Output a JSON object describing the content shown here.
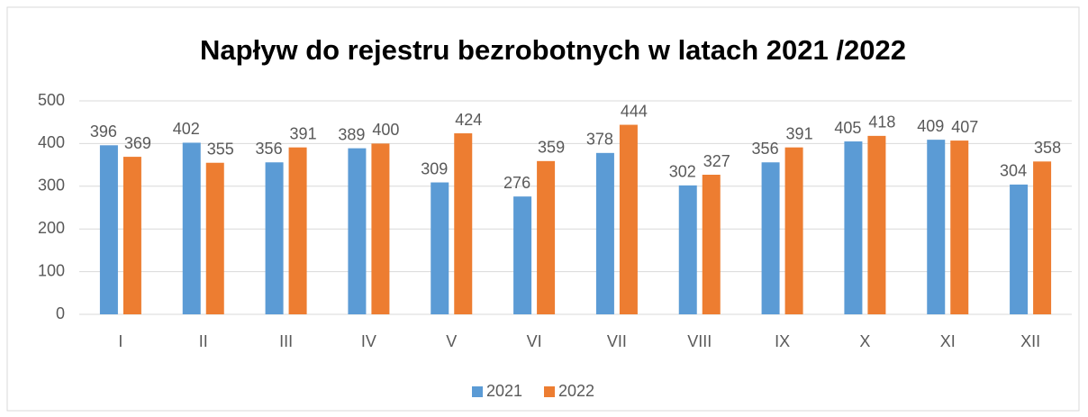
{
  "chart_data": {
    "type": "bar",
    "title": "Napływ do rejestru bezrobotnych w latach 2021 /2022",
    "categories": [
      "I",
      "II",
      "III",
      "IV",
      "V",
      "VI",
      "VII",
      "VIII",
      "IX",
      "X",
      "XI",
      "XII"
    ],
    "series": [
      {
        "name": "2021",
        "color": "#5b9bd5",
        "values": [
          396,
          402,
          356,
          389,
          309,
          276,
          378,
          302,
          356,
          405,
          409,
          304
        ]
      },
      {
        "name": "2022",
        "color": "#ed7d31",
        "values": [
          369,
          355,
          391,
          400,
          424,
          359,
          444,
          327,
          391,
          418,
          407,
          358
        ]
      }
    ],
    "ylim": [
      0,
      500
    ],
    "yticks": [
      0,
      100,
      200,
      300,
      400,
      500
    ],
    "grid": true,
    "legend": "bottom"
  }
}
